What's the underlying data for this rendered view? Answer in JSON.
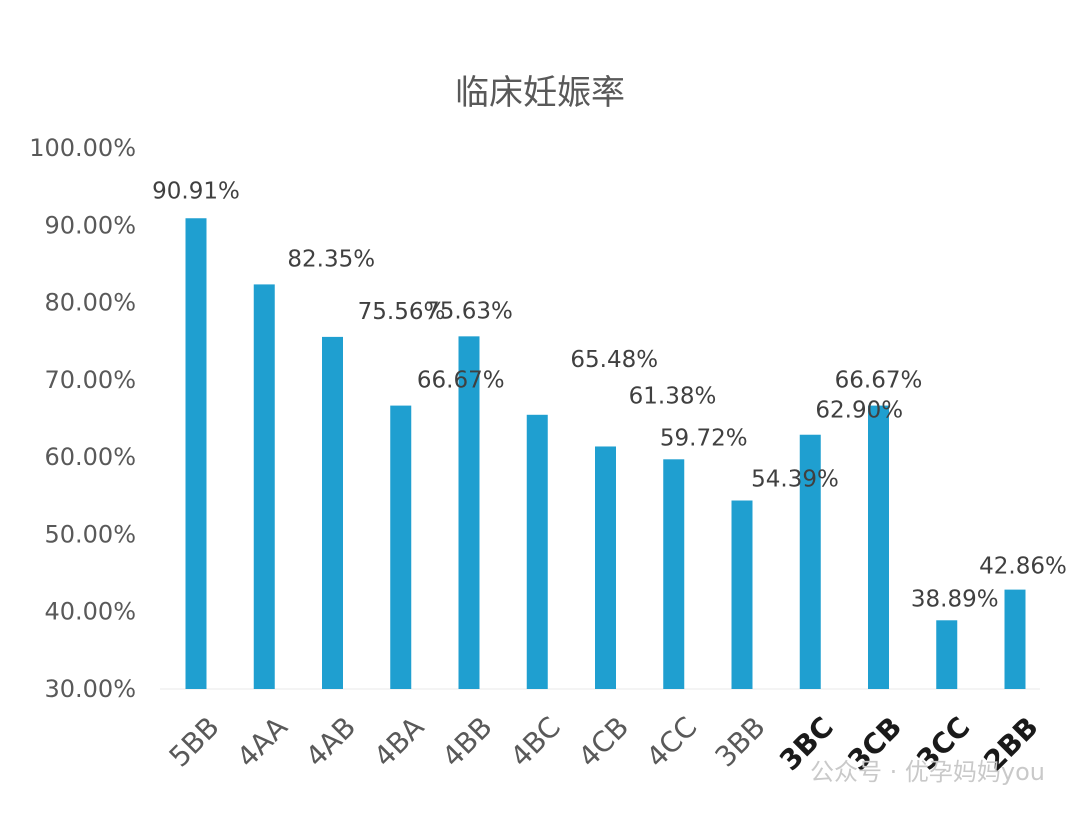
{
  "chart_data": {
    "type": "bar",
    "title": "临床妊娠率",
    "xlabel": "",
    "ylabel": "",
    "ylim": [
      30,
      100
    ],
    "yticks": [
      "30.00%",
      "40.00%",
      "50.00%",
      "60.00%",
      "70.00%",
      "80.00%",
      "90.00%",
      "100.00%"
    ],
    "grid": false,
    "legend": "none",
    "categories": [
      "5BB",
      "4AA",
      "4AB",
      "4BA",
      "4BB",
      "4BC",
      "4CB",
      "4CC",
      "3BB",
      "3BC",
      "3CB",
      "3CC",
      "2BB"
    ],
    "values": [
      90.91,
      82.35,
      75.56,
      66.67,
      75.63,
      65.48,
      61.38,
      59.72,
      54.39,
      62.9,
      66.67,
      38.89,
      42.86
    ],
    "data_labels": [
      "90.91%",
      "82.35%",
      "75.56%",
      "66.67%",
      "75.63%",
      "65.48%",
      "61.38%",
      "59.72%",
      "54.39%",
      "62.90%",
      "66.67%",
      "38.89%",
      "42.86%"
    ],
    "bar_color": "#1f9fd0"
  },
  "watermark": {
    "text": "公众号 · 优孕妈妈you",
    "color": "#c9c9c9"
  }
}
